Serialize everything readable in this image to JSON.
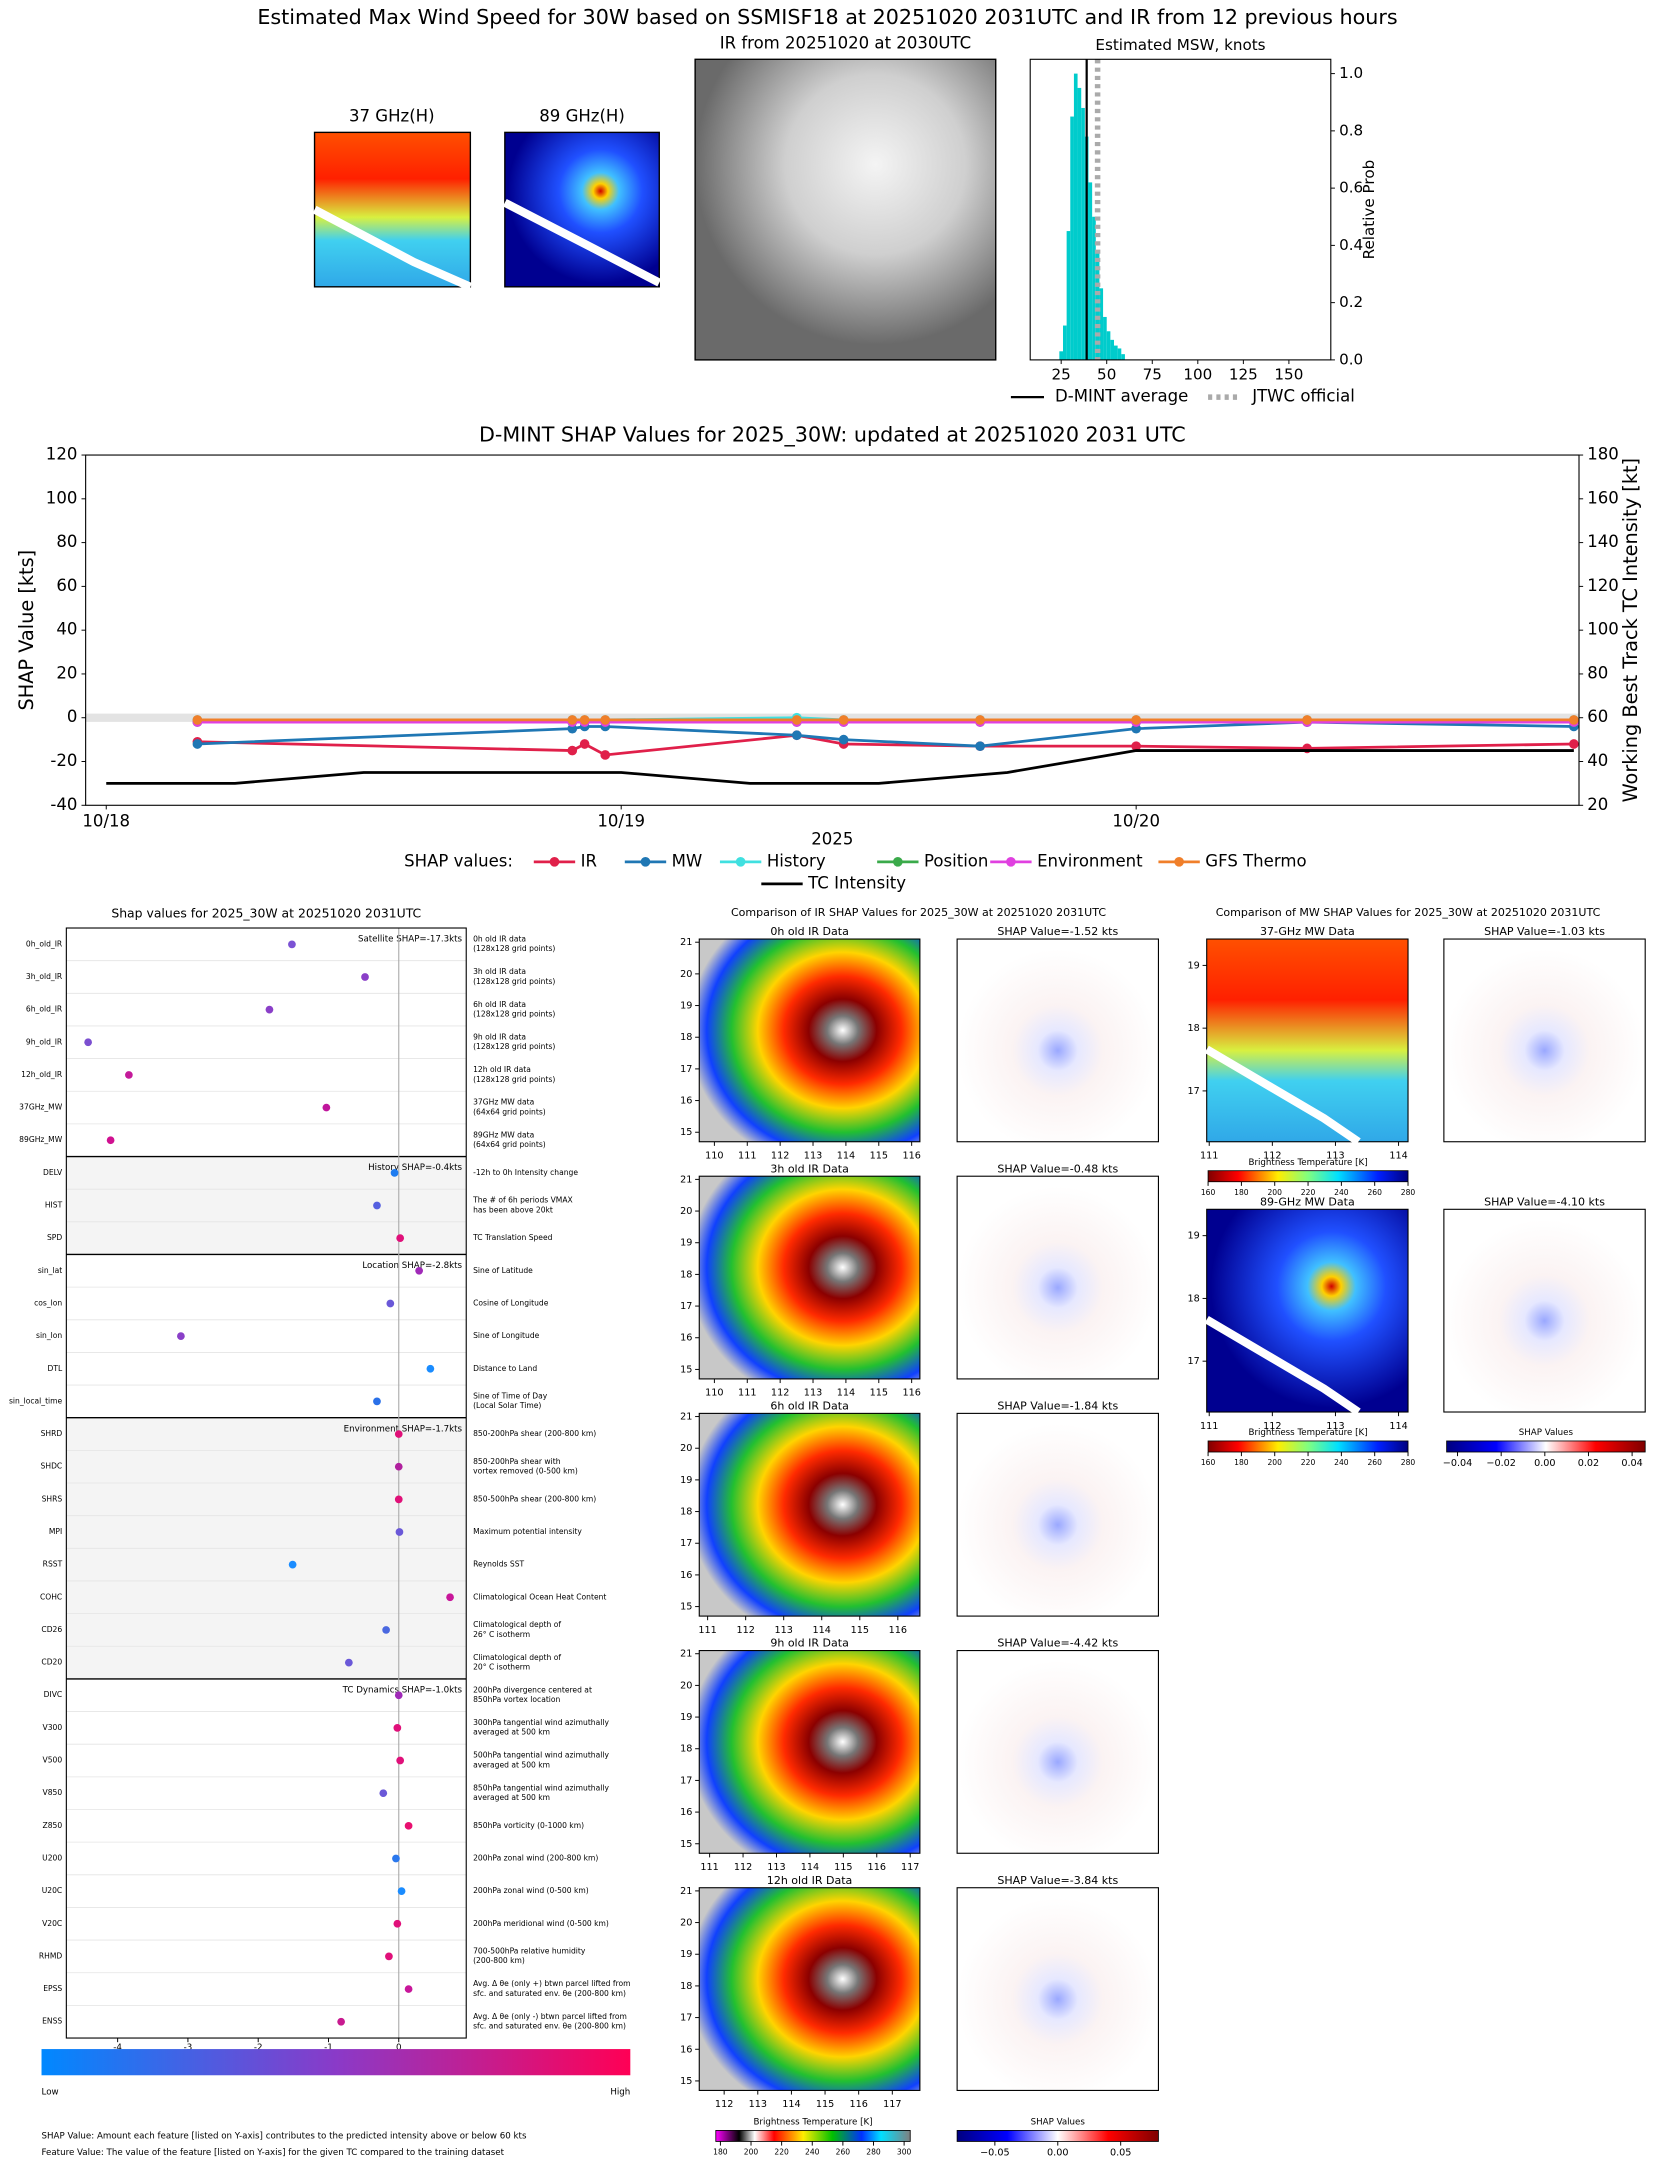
{
  "title": "Estimated Max Wind Speed for 30W based on SSMISF18 at 20251020 2031UTC and IR from 12 previous hours",
  "top_panels": {
    "ch37": "37 GHz(H)",
    "ch89": "89 GHz(H)",
    "ir": "IR from 20251020 at 2030UTC"
  },
  "chart_data": [
    {
      "type": "histogram",
      "title": "Estimated MSW, knots",
      "ylabel": "Relative Prob",
      "color": "#00cccc",
      "bins": [
        24,
        26,
        28,
        30,
        32,
        34,
        36,
        38,
        40,
        42,
        44,
        46,
        48,
        50,
        52,
        54,
        56,
        58,
        60
      ],
      "values": [
        0.03,
        0.12,
        0.45,
        0.85,
        1.0,
        0.95,
        0.88,
        0.78,
        0.62,
        0.5,
        0.38,
        0.25,
        0.15,
        0.1,
        0.07,
        0.05,
        0.04,
        0.02
      ],
      "xlim": [
        8,
        173
      ],
      "xticks": [
        25,
        50,
        75,
        100,
        125,
        150
      ],
      "ylim": [
        0,
        1.05
      ],
      "yticks": [
        {
          "value": 0,
          "label": "0.0"
        },
        {
          "value": 0.2,
          "label": "0.2"
        },
        {
          "value": 0.4,
          "label": "0.4"
        },
        {
          "value": 0.6,
          "label": "0.6"
        },
        {
          "value": 0.8,
          "label": "0.8"
        },
        {
          "value": 1,
          "label": "1.0"
        }
      ],
      "markers": [
        {
          "name": "D-MINT average",
          "x": 39,
          "color": "#000000",
          "dash": "solid"
        },
        {
          "name": "JTWC official",
          "x": 45,
          "color": "#aaaaaa",
          "dash": "dotted"
        }
      ]
    },
    {
      "type": "line",
      "title": "D-MINT SHAP Values for 2025_30W: updated at 20251020 2031 UTC",
      "xlabel": "2025",
      "ylabel": "SHAP Value [kts]",
      "y2label": "Working Best Track TC Intensity [kt]",
      "legend_title": "SHAP values:",
      "x": [
        0.177,
        0.905,
        0.929,
        0.969,
        1.341,
        1.432,
        1.697,
        2.0,
        2.332,
        2.85
      ],
      "xlim": [
        -0.04,
        2.86
      ],
      "xticks": [
        {
          "value": 0,
          "label": "10/18"
        },
        {
          "value": 1,
          "label": "10/19"
        },
        {
          "value": 2,
          "label": "10/20"
        }
      ],
      "ylim": [
        -40,
        120
      ],
      "yticks": [
        -40,
        -20,
        0,
        20,
        40,
        60,
        80,
        100,
        120
      ],
      "y2lim": [
        20,
        180
      ],
      "y2ticks": [
        20,
        40,
        60,
        80,
        100,
        120,
        140,
        160,
        180
      ],
      "series": [
        {
          "name": "IR",
          "color": "#e0204a",
          "markers": true,
          "values": [
            -11,
            -15,
            -12,
            -17,
            -8,
            -12,
            -13,
            -13,
            -14,
            -12
          ]
        },
        {
          "name": "MW",
          "color": "#1f77b4",
          "markers": true,
          "values": [
            -12,
            -5,
            -4,
            -4,
            -8,
            -10,
            -13,
            -5,
            -2,
            -4
          ]
        },
        {
          "name": "History",
          "color": "#40e0e0",
          "markers": true,
          "values": [
            -1,
            -1,
            -1,
            -1,
            0,
            -1,
            -1,
            -1,
            -1,
            -1
          ]
        },
        {
          "name": "Position",
          "color": "#3aaa4a",
          "markers": true,
          "values": [
            -2,
            -2,
            -2,
            -2,
            -2,
            -2,
            -2,
            -2,
            -2,
            -2
          ]
        },
        {
          "name": "Environment",
          "color": "#e040e0",
          "markers": true,
          "values": [
            -2,
            -2,
            -2,
            -2,
            -2,
            -2,
            -2,
            -2,
            -2,
            -2
          ]
        },
        {
          "name": "GFS Thermo",
          "color": "#f07f2a",
          "markers": true,
          "values": [
            -1,
            -1,
            -1,
            -1,
            -1,
            -1,
            -1,
            -1,
            -1,
            -1
          ]
        },
        {
          "name": "TC Intensity",
          "color": "#000000",
          "markers": false,
          "axis": "y2",
          "x": [
            0,
            0.25,
            0.5,
            0.75,
            1,
            1.25,
            1.5,
            1.75,
            2,
            2.25,
            2.5,
            2.75,
            2.85
          ],
          "values": [
            30,
            30,
            35,
            35,
            35,
            30,
            30,
            35,
            45,
            45,
            45,
            45,
            45
          ]
        }
      ]
    },
    {
      "type": "dot",
      "title": "Shap values for 2025_30W at 20251020 2031UTC",
      "xlabel": "SHAP Value [kts]",
      "xlim": [
        -4.73,
        0.96
      ],
      "xticks": [
        -4,
        -3,
        -2,
        -1,
        0
      ],
      "groups": [
        {
          "annotation": "Satellite SHAP=-17.3kts",
          "shaded": false,
          "categories": [
            "0h_old_IR",
            "3h_old_IR",
            "6h_old_IR",
            "9h_old_IR",
            "12h_old_IR",
            "37GHz_MW",
            "89GHz_MW"
          ],
          "values": [
            -1.52,
            -0.48,
            -1.84,
            -4.42,
            -3.84,
            -1.03,
            -4.1
          ],
          "colors": [
            "#7b52d4",
            "#8a3fc8",
            "#8a3fc8",
            "#7b4fd0",
            "#c41a9a",
            "#c0169c",
            "#d01090"
          ],
          "descriptions": [
            [
              "0h old IR data",
              "(128x128 grid points)"
            ],
            [
              "3h old IR data",
              "(128x128 grid points)"
            ],
            [
              "6h old IR data",
              "(128x128 grid points)"
            ],
            [
              "9h old IR data",
              "(128x128 grid points)"
            ],
            [
              "12h old IR data",
              "(128x128 grid points)"
            ],
            [
              "37GHz MW data",
              "(64x64 grid points)"
            ],
            [
              "89GHz MW data",
              "(64x64 grid points)"
            ]
          ]
        },
        {
          "annotation": "History SHAP=-0.4kts",
          "shaded": true,
          "categories": [
            "DELV",
            "HIST",
            "SPD"
          ],
          "values": [
            -0.06,
            -0.31,
            0.02
          ],
          "colors": [
            "#1e7cf0",
            "#5560e0",
            "#e0107a"
          ],
          "descriptions": [
            [
              "-12h to 0h Intensity change"
            ],
            [
              "The # of 6h periods VMAX",
              "has been above 20kt"
            ],
            [
              "TC Translation Speed"
            ]
          ]
        },
        {
          "annotation": "Location SHAP=-2.8kts",
          "shaded": false,
          "categories": [
            "sin_lat",
            "cos_lon",
            "sin_lon",
            "DTL",
            "sin_local_time"
          ],
          "values": [
            0.29,
            -0.12,
            -3.1,
            0.45,
            -0.31
          ],
          "colors": [
            "#a02ab8",
            "#6a58d8",
            "#8a3fc8",
            "#1a8cff",
            "#2a70e8"
          ],
          "descriptions": [
            [
              "Sine of Latitude"
            ],
            [
              "Cosine of Longitude"
            ],
            [
              "Sine of Longitude"
            ],
            [
              "Distance to Land"
            ],
            [
              "Sine of Time of Day",
              "(Local Solar Time)"
            ]
          ]
        },
        {
          "annotation": "Environment SHAP=-1.7kts",
          "shaded": true,
          "categories": [
            "SHRD",
            "SHDC",
            "SHRS",
            "MPI",
            "RSST",
            "COHC",
            "CD26",
            "CD20"
          ],
          "values": [
            0.0,
            0.0,
            0.0,
            0.01,
            -1.51,
            0.73,
            -0.18,
            -0.71
          ],
          "colors": [
            "#e01078",
            "#b0209e",
            "#e01078",
            "#6a58d8",
            "#1a8cff",
            "#c8169a",
            "#4a68e0",
            "#6a58d8"
          ],
          "descriptions": [
            [
              "850-200hPa shear (200-800 km)"
            ],
            [
              "850-200hPa shear with",
              "vortex removed (0-500 km)"
            ],
            [
              "850-500hPa shear (200-800 km)"
            ],
            [
              "Maximum potential intensity"
            ],
            [
              "Reynolds SST"
            ],
            [
              "Climatological Ocean Heat Content"
            ],
            [
              "Climatological depth of",
              "26° C isotherm"
            ],
            [
              "Climatological depth of",
              "20° C isotherm"
            ]
          ]
        },
        {
          "annotation": "TC Dynamics SHAP=-1.0kts",
          "shaded": false,
          "categories": [
            "DIVC",
            "V300",
            "V500",
            "V850",
            "Z850",
            "U200",
            "U20C",
            "V20C",
            "RHMD",
            "EPSS",
            "ENSS"
          ],
          "values": [
            0.0,
            -0.02,
            0.02,
            -0.22,
            0.14,
            -0.04,
            0.04,
            -0.02,
            -0.14,
            0.14,
            -0.82
          ],
          "colors": [
            "#a02ab8",
            "#e0107a",
            "#e0107a",
            "#6a58d8",
            "#e81070",
            "#2a78ee",
            "#1a8cff",
            "#e0107a",
            "#e0107a",
            "#c8169a",
            "#c81a90"
          ],
          "descriptions": [
            [
              "200hPa divergence centered at",
              "850hPa vortex location"
            ],
            [
              "300hPa tangential wind azimuthally",
              "averaged at 500 km"
            ],
            [
              "500hPa tangential wind azimuthally",
              "averaged at 500 km"
            ],
            [
              "850hPa tangential wind azimuthally",
              "averaged at 500 km"
            ],
            [
              "850hPa vorticity (0-1000 km)"
            ],
            [
              "200hPa zonal wind (200-800 km)"
            ],
            [
              "200hPa zonal wind (0-500 km)"
            ],
            [
              "200hPa meridional wind (0-500 km)"
            ],
            [
              "700-500hPa relative humidity",
              "(200-800 km)"
            ],
            [
              "Avg. Δ θe (only +) btwn parcel lifted from",
              "sfc. and saturated env. θe (200-800 km)"
            ],
            [
              "Avg. Δ θe (only -) btwn parcel lifted from",
              "sfc. and saturated env. θe (200-800 km)"
            ]
          ]
        }
      ],
      "colorbar": {
        "low": "Low",
        "high": "High"
      },
      "notes": [
        "SHAP Value: Amount each feature [listed on Y-axis] contributes to the predicted intensity above or below 60 kts",
        "Feature Value: The value of the feature [listed on Y-axis] for the given TC compared to the training dataset"
      ]
    }
  ],
  "ir_comparison": {
    "title": "Comparison of IR SHAP Values for 2025_30W at 20251020 2031UTC",
    "panels": [
      {
        "title": "0h old IR Data",
        "shap_title": "SHAP Value=-1.52 kts",
        "xlim": [
          109.54,
          116.25
        ],
        "ylim": [
          14.7,
          21.1
        ],
        "xticks": [
          110,
          111,
          112,
          113,
          114,
          115,
          116
        ],
        "yticks": [
          15,
          16,
          17,
          18,
          19,
          20,
          21
        ]
      },
      {
        "title": "3h old IR Data",
        "shap_title": "SHAP Value=-0.48 kts",
        "xlim": [
          109.54,
          116.25
        ],
        "ylim": [
          14.7,
          21.1
        ],
        "xticks": [
          110,
          111,
          112,
          113,
          114,
          115,
          116
        ],
        "yticks": [
          15,
          16,
          17,
          18,
          19,
          20,
          21
        ]
      },
      {
        "title": "6h old IR Data",
        "shap_title": "SHAP Value=-1.84 kts",
        "xlim": [
          110.78,
          116.58
        ],
        "ylim": [
          14.7,
          21.1
        ],
        "xticks": [
          111,
          112,
          113,
          114,
          115,
          116
        ],
        "yticks": [
          15,
          16,
          17,
          18,
          19,
          20,
          21
        ]
      },
      {
        "title": "9h old IR Data",
        "shap_title": "SHAP Value=-4.42 kts",
        "xlim": [
          110.69,
          117.29
        ],
        "ylim": [
          14.7,
          21.1
        ],
        "xticks": [
          111,
          112,
          113,
          114,
          115,
          116,
          117
        ],
        "yticks": [
          15,
          16,
          17,
          18,
          19,
          20,
          21
        ]
      },
      {
        "title": "12h old IR Data",
        "shap_title": "SHAP Value=-3.84 kts",
        "xlim": [
          111.26,
          117.82
        ],
        "ylim": [
          14.7,
          21.1
        ],
        "xticks": [
          112,
          113,
          114,
          115,
          116,
          117
        ],
        "yticks": [
          15,
          16,
          17,
          18,
          19,
          20,
          21
        ]
      }
    ],
    "colorbar": {
      "label": "Brightness Temperature [K]",
      "lim": [
        177,
        304
      ],
      "ticks": [
        180,
        200,
        220,
        240,
        260,
        280,
        300
      ]
    },
    "shap_colorbar": {
      "label": "SHAP Values",
      "lim": [
        -0.08,
        0.08
      ],
      "ticks": [
        {
          "value": -0.05,
          "label": "−0.05"
        },
        {
          "value": 0,
          "label": "0.00"
        },
        {
          "value": 0.05,
          "label": "0.05"
        }
      ]
    }
  },
  "mw_comparison": {
    "title": "Comparison of MW SHAP Values for 2025_30W at 20251020 2031UTC",
    "panels": [
      {
        "title": "37-GHz MW Data",
        "shap_title": "SHAP Value=-1.03 kts",
        "xlim": [
          110.96,
          114.15
        ],
        "ylim": [
          16.19,
          19.42
        ],
        "xticks": [
          111,
          112,
          113,
          114
        ],
        "yticks": [
          17,
          18,
          19
        ],
        "colorbar": {
          "label": "Brightness Temperature [K]",
          "lim": [
            160,
            280
          ],
          "ticks": [
            160,
            180,
            200,
            220,
            240,
            260,
            280
          ]
        }
      },
      {
        "title": "89-GHz MW Data",
        "shap_title": "SHAP Value=-4.10 kts",
        "xlim": [
          110.96,
          114.15
        ],
        "ylim": [
          16.19,
          19.42
        ],
        "xticks": [
          111,
          112,
          113,
          114
        ],
        "yticks": [
          17,
          18,
          19
        ],
        "colorbar": {
          "label": "Brightness Temperature [K]",
          "lim": [
            160,
            280
          ],
          "ticks": [
            160,
            180,
            200,
            220,
            240,
            260,
            280
          ]
        }
      }
    ],
    "shap_colorbar": {
      "label": "SHAP Values",
      "lim": [
        -0.045,
        0.046
      ],
      "ticks": [
        {
          "value": -0.04,
          "label": "−0.04"
        },
        {
          "value": -0.02,
          "label": "−0.02"
        },
        {
          "value": 0,
          "label": "0.00"
        },
        0.02,
        0.04
      ]
    }
  }
}
